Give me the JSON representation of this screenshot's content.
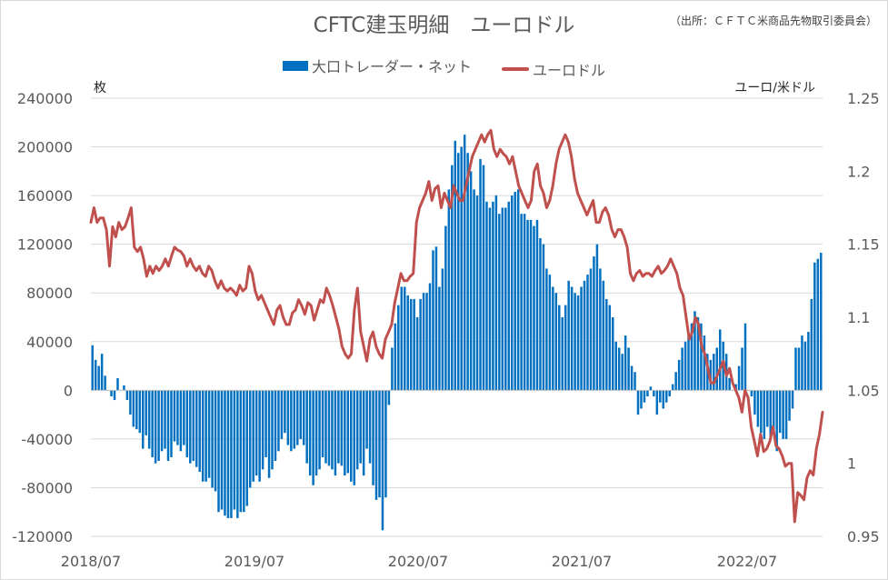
{
  "title": "CFTC建玉明細　ユーロドル",
  "source": "（出所：ＣＦＴＣ米商品先物取引委員会）",
  "legend": {
    "bar_label": "大口トレーダー・ネット",
    "line_label": "ユーロドル"
  },
  "units": {
    "left": "枚",
    "right": "ユーロ/米ドル"
  },
  "colors": {
    "bar": "#0070c0",
    "line": "#c0504d",
    "grid": "#d9d9d9"
  },
  "chart_data": {
    "type": "bar+line",
    "title": "CFTC建玉明細　ユーロドル",
    "x_tick_labels": [
      "2018/07",
      "2019/07",
      "2020/07",
      "2021/07",
      "2022/07"
    ],
    "y_left": {
      "label": "枚",
      "ylim": [
        -120000,
        240000
      ],
      "ticks": [
        "240000",
        "200000",
        "160000",
        "120000",
        "80000",
        "40000",
        "0",
        "-40000",
        "-80000",
        "-120000"
      ]
    },
    "y_right": {
      "label": "ユーロ/米ドル",
      "ylim": [
        0.95,
        1.25
      ],
      "ticks": [
        "1.25",
        "1.2",
        "1.15",
        "1.1",
        "1.05",
        "1",
        "0.95"
      ]
    },
    "grid": "horizontal",
    "legend_position": "top-center",
    "series": [
      {
        "name": "大口トレーダー・ネット",
        "type": "bar",
        "axis": "left",
        "values": [
          37000,
          25000,
          20000,
          30000,
          12000,
          0,
          -5000,
          -8000,
          10000,
          0,
          4000,
          -8000,
          -20000,
          -30000,
          -32000,
          -35000,
          -48000,
          -37000,
          -48000,
          -55000,
          -60000,
          -58000,
          -50000,
          -48000,
          -58000,
          -55000,
          -42000,
          -45000,
          -50000,
          -45000,
          -55000,
          -60000,
          -58000,
          -63000,
          -67000,
          -75000,
          -75000,
          -72000,
          -80000,
          -83000,
          -100000,
          -98000,
          -103000,
          -105000,
          -105000,
          -98000,
          -105000,
          -100000,
          -100000,
          -95000,
          -80000,
          -75000,
          -70000,
          -75000,
          -65000,
          -55000,
          -72000,
          -65000,
          -58000,
          -50000,
          -40000,
          -35000,
          -45000,
          -50000,
          -48000,
          -45000,
          -40000,
          -45000,
          -60000,
          -70000,
          -78000,
          -70000,
          -65000,
          -55000,
          -60000,
          -62000,
          -65000,
          -70000,
          -60000,
          -62000,
          -70000,
          -68000,
          -75000,
          -78000,
          -65000,
          -60000,
          -70000,
          -48000,
          -60000,
          -78000,
          -90000,
          -88000,
          -115000,
          -88000,
          -12000,
          35000,
          55000,
          70000,
          85000,
          85000,
          78000,
          75000,
          75000,
          60000,
          75000,
          80000,
          80000,
          88000,
          115000,
          118000,
          85000,
          100000,
          135000,
          165000,
          185000,
          205000,
          195000,
          200000,
          210000,
          195000,
          180000,
          165000,
          160000,
          190000,
          185000,
          155000,
          150000,
          155000,
          160000,
          145000,
          150000,
          150000,
          155000,
          160000,
          163000,
          165000,
          145000,
          145000,
          140000,
          140000,
          135000,
          140000,
          125000,
          120000,
          100000,
          95000,
          85000,
          80000,
          70000,
          60000,
          70000,
          90000,
          85000,
          80000,
          78000,
          85000,
          90000,
          95000,
          100000,
          110000,
          120000,
          100000,
          90000,
          75000,
          70000,
          60000,
          40000,
          35000,
          30000,
          45000,
          35000,
          20000,
          15000,
          -20000,
          -15000,
          -10000,
          -5000,
          3000,
          -5000,
          -20000,
          -10000,
          -15000,
          -10000,
          -5000,
          5000,
          15000,
          25000,
          35000,
          40000,
          45000,
          55000,
          65000,
          60000,
          55000,
          45000,
          30000,
          25000,
          30000,
          35000,
          50000,
          40000,
          30000,
          10000,
          0,
          5000,
          20000,
          35000,
          55000,
          0,
          -5000,
          -20000,
          -30000,
          -35000,
          -40000,
          -30000,
          -40000,
          -35000,
          -50000,
          -35000,
          -40000,
          -40000,
          -25000,
          -15000,
          35000,
          35000,
          45000,
          40000,
          48000,
          75000,
          105000,
          108000,
          113000
        ]
      },
      {
        "name": "ユーロドル",
        "type": "line",
        "axis": "right",
        "values": [
          1.165,
          1.175,
          1.165,
          1.168,
          1.168,
          1.16,
          1.135,
          1.162,
          1.155,
          1.165,
          1.16,
          1.162,
          1.168,
          1.175,
          1.148,
          1.145,
          1.148,
          1.14,
          1.128,
          1.135,
          1.13,
          1.135,
          1.132,
          1.135,
          1.14,
          1.135,
          1.142,
          1.148,
          1.146,
          1.145,
          1.142,
          1.135,
          1.14,
          1.135,
          1.132,
          1.135,
          1.13,
          1.128,
          1.135,
          1.132,
          1.125,
          1.12,
          1.125,
          1.12,
          1.118,
          1.12,
          1.118,
          1.115,
          1.122,
          1.118,
          1.12,
          1.135,
          1.13,
          1.118,
          1.112,
          1.115,
          1.11,
          1.105,
          1.1,
          1.095,
          1.105,
          1.108,
          1.1,
          1.095,
          1.095,
          1.103,
          1.105,
          1.112,
          1.108,
          1.102,
          1.11,
          1.108,
          1.098,
          1.105,
          1.112,
          1.11,
          1.12,
          1.115,
          1.108,
          1.1,
          1.092,
          1.08,
          1.075,
          1.072,
          1.075,
          1.105,
          1.12,
          1.09,
          1.08,
          1.07,
          1.085,
          1.09,
          1.08,
          1.075,
          1.072,
          1.085,
          1.09,
          1.095,
          1.11,
          1.12,
          1.13,
          1.125,
          1.125,
          1.128,
          1.13,
          1.165,
          1.175,
          1.18,
          1.185,
          1.193,
          1.18,
          1.188,
          1.19,
          1.175,
          1.185,
          1.18,
          1.175,
          1.19,
          1.185,
          1.18,
          1.18,
          1.19,
          1.2,
          1.21,
          1.215,
          1.22,
          1.225,
          1.22,
          1.225,
          1.228,
          1.215,
          1.21,
          1.215,
          1.212,
          1.21,
          1.205,
          1.21,
          1.2,
          1.19,
          1.185,
          1.18,
          1.175,
          1.18,
          1.2,
          1.205,
          1.19,
          1.185,
          1.175,
          1.18,
          1.19,
          1.205,
          1.215,
          1.22,
          1.225,
          1.22,
          1.21,
          1.195,
          1.185,
          1.18,
          1.175,
          1.17,
          1.175,
          1.18,
          1.165,
          1.165,
          1.172,
          1.175,
          1.17,
          1.16,
          1.155,
          1.16,
          1.16,
          1.155,
          1.148,
          1.13,
          1.125,
          1.13,
          1.132,
          1.128,
          1.13,
          1.13,
          1.128,
          1.132,
          1.135,
          1.13,
          1.132,
          1.135,
          1.14,
          1.135,
          1.13,
          1.12,
          1.115,
          1.1,
          1.085,
          1.09,
          1.1,
          1.095,
          1.08,
          1.075,
          1.065,
          1.055,
          1.055,
          1.06,
          1.065,
          1.07,
          1.06,
          1.065,
          1.055,
          1.05,
          1.045,
          1.035,
          1.05,
          1.045,
          1.025,
          1.015,
          1.005,
          1.02,
          1.008,
          1.01,
          1.015,
          1.025,
          1.012,
          1.01,
          1.005,
          0.998,
          1.0,
          1.0,
          0.96,
          0.98,
          0.978,
          0.975,
          0.99,
          0.995,
          0.992,
          1.01,
          1.02,
          1.035
        ]
      }
    ]
  }
}
